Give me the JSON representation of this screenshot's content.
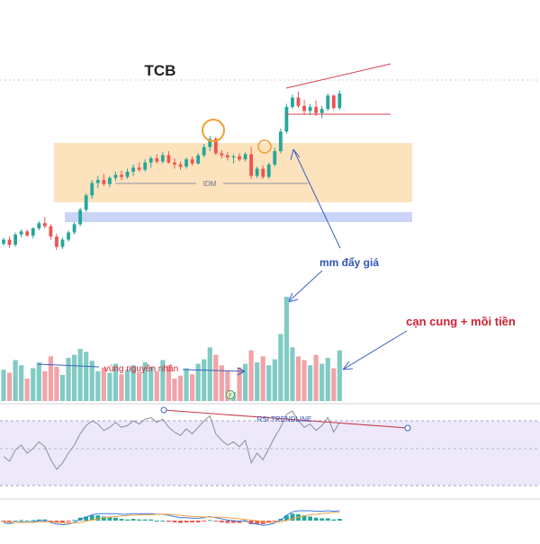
{
  "chart_data": {
    "type": "candlestick",
    "title": "TCB",
    "colors": {
      "up": "#26a69a",
      "down": "#ef5350",
      "vol_up": "#80cbc4",
      "vol_down": "#f0a3a8",
      "demand_zone": "#fce2bd",
      "blue_zone": "#c9d4f7",
      "annotation_blue": "#3355bb",
      "annotation_red": "#cc2233",
      "rsi_line": "#8a8f98",
      "rsi_band": "#ede9fa",
      "macd_line": "#3d7be0",
      "signal_line": "#f0a040"
    },
    "candles": [
      [
        22.0,
        22.6,
        21.8,
        22.4
      ],
      [
        22.4,
        22.7,
        21.6,
        21.9
      ],
      [
        21.9,
        23.1,
        21.7,
        22.9
      ],
      [
        22.9,
        23.4,
        22.6,
        23.2
      ],
      [
        23.2,
        23.4,
        22.7,
        22.8
      ],
      [
        22.8,
        23.6,
        22.5,
        23.5
      ],
      [
        23.5,
        24.2,
        23.3,
        24.0
      ],
      [
        24.0,
        24.6,
        23.5,
        23.7
      ],
      [
        23.7,
        23.9,
        22.4,
        22.7
      ],
      [
        22.7,
        23.0,
        21.4,
        21.7
      ],
      [
        21.7,
        22.6,
        21.5,
        22.4
      ],
      [
        22.4,
        23.3,
        22.2,
        23.1
      ],
      [
        23.1,
        24.1,
        22.9,
        23.9
      ],
      [
        23.9,
        25.5,
        23.7,
        25.3
      ],
      [
        25.3,
        26.9,
        25.1,
        26.7
      ],
      [
        26.7,
        28.2,
        26.4,
        27.9
      ],
      [
        27.9,
        28.6,
        27.4,
        28.2
      ],
      [
        28.2,
        28.8,
        27.6,
        27.8
      ],
      [
        27.8,
        28.6,
        27.5,
        28.4
      ],
      [
        28.4,
        29.0,
        28.1,
        28.7
      ],
      [
        28.7,
        29.1,
        28.2,
        28.5
      ],
      [
        28.5,
        29.3,
        28.3,
        29.0
      ],
      [
        29.0,
        29.7,
        28.6,
        29.4
      ],
      [
        29.4,
        29.9,
        29.0,
        29.2
      ],
      [
        29.2,
        30.2,
        29.0,
        29.9
      ],
      [
        29.9,
        30.5,
        29.4,
        30.3
      ],
      [
        30.3,
        30.7,
        29.8,
        30.0
      ],
      [
        30.0,
        30.9,
        29.8,
        30.6
      ],
      [
        30.6,
        31.0,
        29.8,
        29.9
      ],
      [
        29.9,
        30.3,
        29.3,
        29.7
      ],
      [
        29.7,
        30.0,
        29.2,
        29.5
      ],
      [
        29.5,
        30.4,
        29.3,
        30.2
      ],
      [
        30.2,
        30.5,
        29.6,
        29.8
      ],
      [
        29.8,
        30.8,
        29.7,
        30.6
      ],
      [
        30.6,
        31.7,
        30.4,
        31.4
      ],
      [
        31.4,
        32.5,
        31.0,
        32.2
      ],
      [
        32.2,
        32.4,
        30.6,
        30.8
      ],
      [
        30.8,
        31.1,
        30.3,
        30.6
      ],
      [
        30.6,
        30.9,
        30.1,
        30.4
      ],
      [
        30.4,
        30.7,
        29.8,
        30.5
      ],
      [
        30.5,
        30.8,
        30.0,
        30.2
      ],
      [
        30.2,
        30.9,
        30.0,
        30.7
      ],
      [
        30.7,
        31.4,
        28.3,
        28.6
      ],
      [
        28.6,
        29.5,
        28.4,
        29.3
      ],
      [
        29.3,
        29.6,
        28.3,
        28.5
      ],
      [
        28.5,
        29.9,
        28.3,
        29.7
      ],
      [
        29.7,
        31.3,
        29.5,
        31.0
      ],
      [
        31.0,
        33.2,
        30.8,
        32.9
      ],
      [
        32.9,
        35.6,
        32.7,
        35.3
      ],
      [
        35.3,
        36.5,
        35.1,
        36.2
      ],
      [
        36.2,
        36.8,
        35.2,
        35.4
      ],
      [
        35.4,
        36.0,
        34.6,
        34.9
      ],
      [
        34.9,
        35.6,
        34.5,
        35.3
      ],
      [
        35.3,
        35.9,
        34.4,
        34.7
      ],
      [
        34.7,
        35.4,
        34.2,
        35.1
      ],
      [
        35.1,
        36.6,
        34.9,
        36.4
      ],
      [
        36.4,
        36.5,
        35.0,
        35.2
      ],
      [
        35.2,
        36.9,
        35.0,
        36.6
      ]
    ],
    "volume": [
      42,
      38,
      55,
      48,
      30,
      44,
      52,
      40,
      60,
      46,
      35,
      58,
      62,
      70,
      66,
      54,
      40,
      45,
      38,
      50,
      36,
      42,
      48,
      39,
      52,
      46,
      40,
      55,
      48,
      30,
      34,
      44,
      36,
      50,
      56,
      72,
      62,
      48,
      40,
      12,
      45,
      50,
      68,
      52,
      60,
      48,
      56,
      90,
      140,
      72,
      60,
      55,
      48,
      62,
      50,
      58,
      44,
      68
    ],
    "rsi": [
      48,
      45,
      52,
      55,
      50,
      53,
      57,
      54,
      46,
      40,
      44,
      50,
      55,
      62,
      67,
      70,
      68,
      64,
      66,
      69,
      66,
      67,
      70,
      68,
      71,
      72,
      69,
      71,
      66,
      63,
      61,
      65,
      62,
      66,
      70,
      73,
      62,
      58,
      55,
      57,
      54,
      58,
      44,
      50,
      46,
      53,
      60,
      66,
      74,
      76,
      70,
      66,
      68,
      64,
      67,
      72,
      63,
      69
    ],
    "rsi_band": [
      30,
      70
    ],
    "macd": [
      -0.4,
      -0.5,
      -0.3,
      -0.2,
      -0.3,
      -0.2,
      0.0,
      0.0,
      -0.3,
      -0.6,
      -0.7,
      -0.6,
      -0.3,
      0.2,
      0.6,
      1.0,
      1.2,
      1.2,
      1.2,
      1.2,
      1.1,
      1.1,
      1.2,
      1.2,
      1.2,
      1.2,
      1.1,
      1.1,
      0.9,
      0.7,
      0.5,
      0.5,
      0.4,
      0.4,
      0.5,
      0.7,
      0.5,
      0.3,
      0.1,
      0.0,
      -0.1,
      0.0,
      -0.5,
      -0.6,
      -0.8,
      -0.7,
      -0.4,
      0.1,
      0.9,
      1.5,
      1.7,
      1.7,
      1.7,
      1.6,
      1.6,
      1.7,
      1.6,
      1.7
    ],
    "signal": [
      -0.2,
      -0.3,
      -0.3,
      -0.3,
      -0.3,
      -0.3,
      -0.2,
      -0.2,
      -0.2,
      -0.3,
      -0.4,
      -0.4,
      -0.4,
      -0.3,
      -0.1,
      0.1,
      0.3,
      0.5,
      0.6,
      0.7,
      0.8,
      0.9,
      0.9,
      1.0,
      1.0,
      1.0,
      1.1,
      1.1,
      1.1,
      1.0,
      0.9,
      0.8,
      0.7,
      0.7,
      0.6,
      0.6,
      0.6,
      0.6,
      0.5,
      0.4,
      0.3,
      0.2,
      0.1,
      0.0,
      -0.2,
      -0.3,
      -0.3,
      -0.2,
      0.0,
      0.3,
      0.6,
      0.8,
      1.0,
      1.1,
      1.2,
      1.3,
      1.4,
      1.4
    ],
    "annotations": {
      "idm": "IDM",
      "mm_day_gia": "mm đẩy giá",
      "can_cung": "cạn cung  + mồi tiền",
      "vung_nguyen_nhan": "vùng nguyên nhân",
      "rsi_trendline": "RSI TRENDLINE",
      "event_marker": "F"
    }
  }
}
